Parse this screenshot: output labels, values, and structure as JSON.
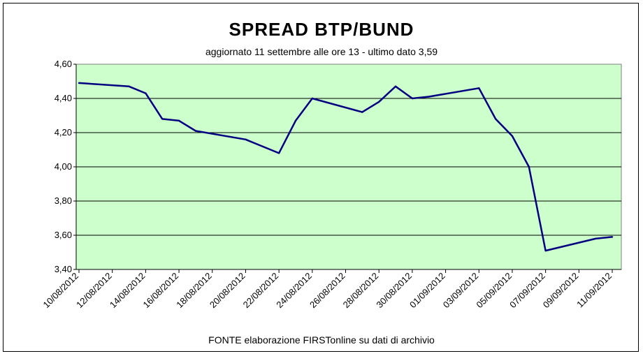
{
  "chart_data": {
    "type": "line",
    "title": "SPREAD  BTP/BUND",
    "subtitle": "aggiornato 11 settembre alle ore 13 - ultimo dato 3,59",
    "footnote": "FONTE elaborazione FIRSTonline su dati di archivio",
    "xlabel": "",
    "ylabel": "",
    "ylim": [
      3.4,
      4.6
    ],
    "y_ticks": [
      "3,40",
      "3,60",
      "3,80",
      "4,00",
      "4,20",
      "4,40",
      "4,60"
    ],
    "x_tick_labels": [
      "10/08/2012",
      "12/08/2012",
      "14/08/2012",
      "16/08/2012",
      "18/08/2012",
      "20/08/2012",
      "22/08/2012",
      "24/08/2012",
      "26/08/2012",
      "28/08/2012",
      "30/08/2012",
      "01/09/2012",
      "03/09/2012",
      "05/09/2012",
      "07/09/2012",
      "09/09/2012",
      "11/09/2012"
    ],
    "x_range": [
      "10/08/2012",
      "11/09/2012"
    ],
    "grid": true,
    "plot_background": "#CCFFCC",
    "line_color": "#000080",
    "series": [
      {
        "x": [
          "10/08/2012",
          "13/08/2012",
          "14/08/2012",
          "15/08/2012",
          "16/08/2012",
          "17/08/2012",
          "20/08/2012",
          "21/08/2012",
          "22/08/2012",
          "23/08/2012",
          "24/08/2012",
          "27/08/2012",
          "28/08/2012",
          "29/08/2012",
          "30/08/2012",
          "31/08/2012",
          "03/09/2012",
          "04/09/2012",
          "05/09/2012",
          "06/09/2012",
          "07/09/2012",
          "10/09/2012",
          "11/09/2012"
        ],
        "values": [
          4.49,
          4.47,
          4.43,
          4.28,
          4.27,
          4.21,
          4.16,
          4.12,
          4.08,
          4.27,
          4.4,
          4.32,
          4.38,
          4.47,
          4.4,
          4.41,
          4.46,
          4.28,
          4.18,
          4.0,
          3.51,
          3.58,
          3.59
        ]
      }
    ]
  }
}
